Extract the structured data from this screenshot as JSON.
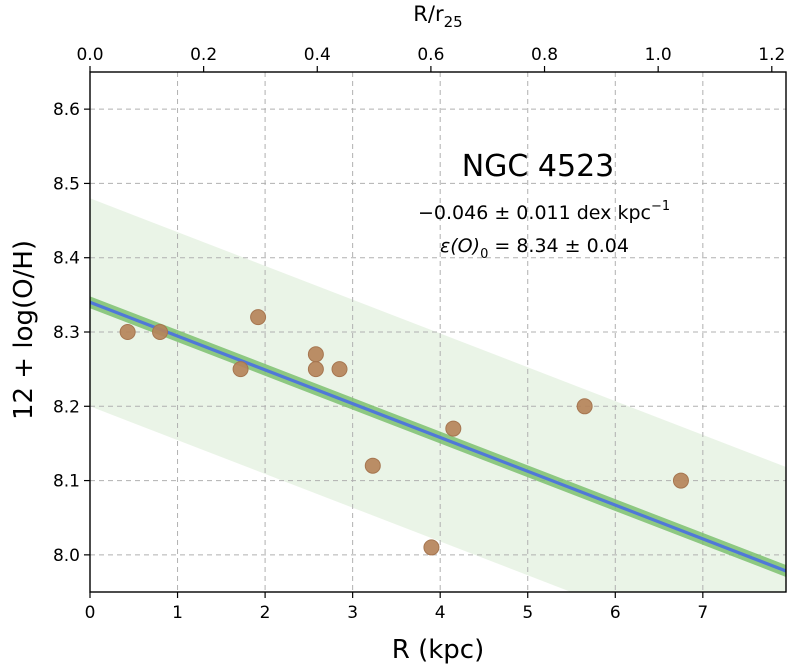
{
  "chart_data": {
    "type": "scatter",
    "galaxy": "NGC 4523",
    "slope_text": "−0.046 ± 0.011 dex kpc",
    "slope_exponent": "−1",
    "intercept_prefix": "ε(O)",
    "intercept_subscript": "0",
    "intercept_text": " = 8.34 ± 0.04",
    "xlabel": "R (kpc)",
    "ylabel": "12 + log(O/H)",
    "top_xlabel_main": "R/r",
    "top_xlabel_sub": "25",
    "xlim": [
      0,
      7.95
    ],
    "ylim": [
      7.95,
      8.65
    ],
    "top_xlim": [
      0,
      1.225
    ],
    "x_ticks": [
      {
        "value": 0,
        "label": "0"
      },
      {
        "value": 1,
        "label": "1"
      },
      {
        "value": 2,
        "label": "2"
      },
      {
        "value": 3,
        "label": "3"
      },
      {
        "value": 4,
        "label": "4"
      },
      {
        "value": 5,
        "label": "5"
      },
      {
        "value": 6,
        "label": "6"
      },
      {
        "value": 7,
        "label": "7"
      }
    ],
    "y_ticks": [
      {
        "value": 8.0,
        "label": "8.0"
      },
      {
        "value": 8.1,
        "label": "8.1"
      },
      {
        "value": 8.2,
        "label": "8.2"
      },
      {
        "value": 8.3,
        "label": "8.3"
      },
      {
        "value": 8.4,
        "label": "8.4"
      },
      {
        "value": 8.5,
        "label": "8.5"
      },
      {
        "value": 8.6,
        "label": "8.6"
      }
    ],
    "top_ticks": [
      {
        "value": 0.0,
        "label": "0.0"
      },
      {
        "value": 0.2,
        "label": "0.2"
      },
      {
        "value": 0.4,
        "label": "0.4"
      },
      {
        "value": 0.6,
        "label": "0.6"
      },
      {
        "value": 0.8,
        "label": "0.8"
      },
      {
        "value": 1.0,
        "label": "1.0"
      },
      {
        "value": 1.2,
        "label": "1.2"
      }
    ],
    "grid": true,
    "points": [
      {
        "x": 0.43,
        "y": 8.3
      },
      {
        "x": 0.8,
        "y": 8.3
      },
      {
        "x": 1.72,
        "y": 8.25
      },
      {
        "x": 1.92,
        "y": 8.32
      },
      {
        "x": 2.58,
        "y": 8.27
      },
      {
        "x": 2.58,
        "y": 8.25
      },
      {
        "x": 2.85,
        "y": 8.25
      },
      {
        "x": 3.23,
        "y": 8.12
      },
      {
        "x": 3.9,
        "y": 8.01
      },
      {
        "x": 4.15,
        "y": 8.17
      },
      {
        "x": 5.65,
        "y": 8.2
      },
      {
        "x": 6.75,
        "y": 8.1
      }
    ],
    "fit": {
      "intercept": 8.34,
      "slope": -0.0455
    },
    "fit_error_band": {
      "intercept_err": 0.008
    },
    "scatter_band": {
      "offset": 0.14
    },
    "colors": {
      "points": "#b5835a",
      "point_edge": "#a67650",
      "fit_line": "#5078d8",
      "fit_band": "#7cbf6f",
      "scatter_band": "#d8ebd4"
    }
  }
}
